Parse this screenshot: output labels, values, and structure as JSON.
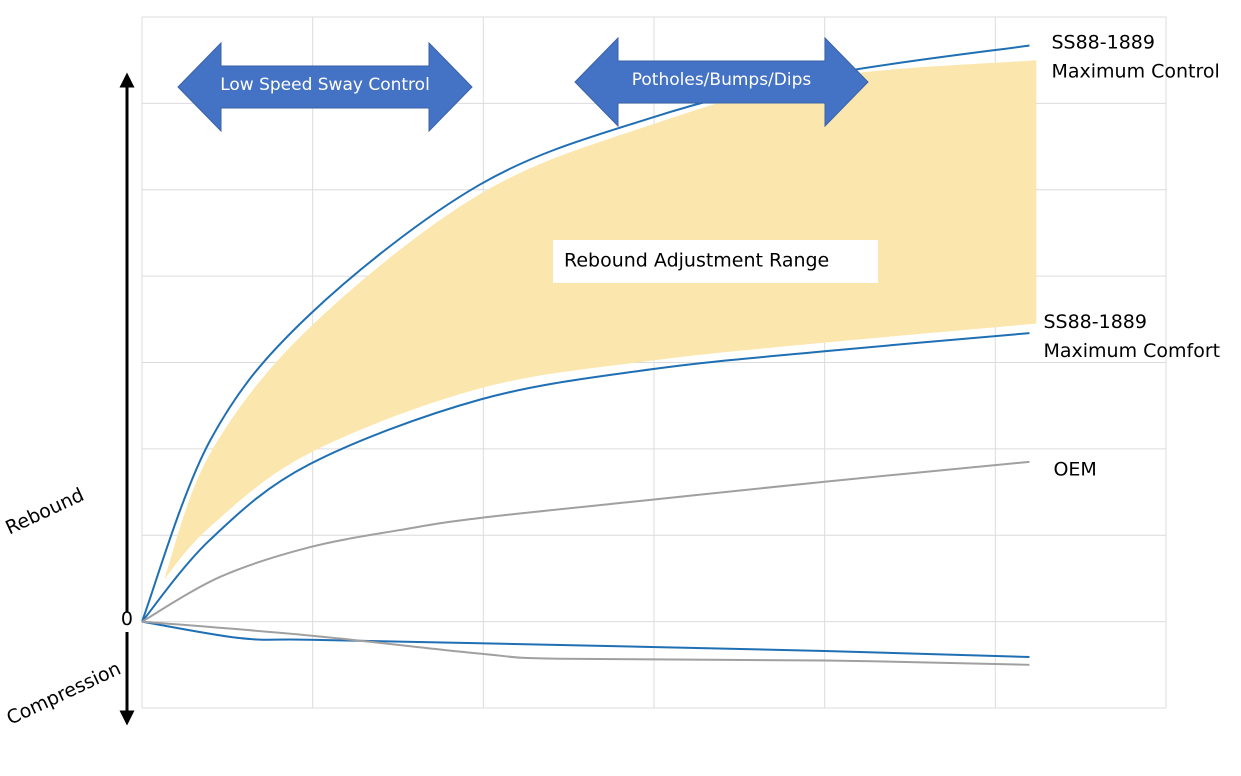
{
  "chart_data": {
    "type": "line",
    "xlim": [
      0,
      6
    ],
    "ylim": [
      -1,
      7
    ],
    "xgrid": [
      0,
      1,
      2,
      3,
      4,
      5,
      6
    ],
    "ygrid": [
      -1,
      0,
      1,
      2,
      3,
      4,
      5,
      6,
      7
    ],
    "yticks": [
      0
    ],
    "grid": true,
    "axis_labels": {
      "up": "Rebound",
      "down": "Compression"
    },
    "band": {
      "label": "Rebound Adjustment Range",
      "color": "#fbe6ad",
      "x": [
        0.13,
        0.4,
        0.98,
        1.98,
        2.98,
        4,
        5.24
      ],
      "upper": [
        0.49,
        1.95,
        3.4,
        4.95,
        5.75,
        6.3,
        6.5
      ],
      "lower": [
        0.49,
        1.1,
        1.95,
        2.7,
        3.02,
        3.23,
        3.45
      ]
    },
    "series": [
      {
        "label_lines": [
          "SS88-1889",
          "Maximum Control"
        ],
        "color": "#1f6fb4",
        "x": [
          0,
          0.4,
          0.98,
          1.98,
          2.98,
          4,
          5.2
        ],
        "values": [
          0,
          2.1,
          3.55,
          5.06,
          5.83,
          6.33,
          6.67
        ]
      },
      {
        "label_lines": [
          "SS88-1889",
          "Maximum Comfort"
        ],
        "color": "#1f6fb4",
        "x": [
          0,
          0.4,
          0.98,
          1.98,
          2.98,
          4,
          5.2
        ],
        "values": [
          0,
          0.95,
          1.82,
          2.57,
          2.92,
          3.13,
          3.34
        ]
      },
      {
        "label_lines": [
          "OEM"
        ],
        "color": "#a0a0a0",
        "x": [
          0,
          0.46,
          0.98,
          1.51,
          1.98,
          2.98,
          4,
          5.2
        ],
        "values": [
          0,
          0.52,
          0.86,
          1.06,
          1.2,
          1.41,
          1.62,
          1.85
        ]
      },
      {
        "color": "#1f6fb4",
        "x": [
          0,
          0.57,
          0.98,
          1.98,
          4,
          5.2
        ],
        "values": [
          0,
          -0.19,
          -0.21,
          -0.25,
          -0.34,
          -0.41
        ]
      },
      {
        "color": "#a0a0a0",
        "x": [
          0,
          0.98,
          1.98,
          2.45,
          4,
          5.2
        ],
        "values": [
          0,
          -0.16,
          -0.37,
          -0.43,
          -0.45,
          -0.5
        ]
      }
    ],
    "arrows": [
      "Low Speed Sway Control",
      "Potholes/Bumps/Dips"
    ]
  }
}
